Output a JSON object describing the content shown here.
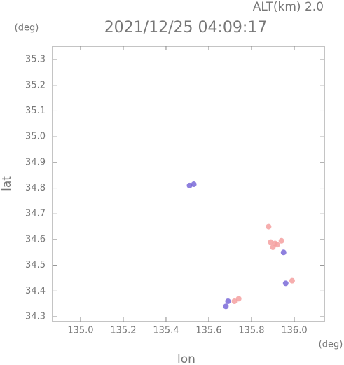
{
  "chart_data": {
    "type": "scatter",
    "title": "2021/12/25 04:09:17",
    "subtitle": "ALT(km) 2.0",
    "x_label": "lon",
    "y_label": "lat",
    "x_unit": "(deg)",
    "y_unit": "(deg)",
    "xlim": [
      134.869,
      136.141
    ],
    "ylim": [
      34.281,
      35.352
    ],
    "xticks": [
      {
        "value": 135.0,
        "label": "135.0"
      },
      135.2,
      135.4,
      135.6,
      135.8,
      {
        "value": 136.0,
        "label": "136.0"
      }
    ],
    "yticks": [
      34.3,
      34.4,
      34.5,
      34.6,
      34.7,
      34.8,
      34.9,
      {
        "value": 35.0,
        "label": "35.0"
      },
      35.1,
      35.2,
      35.3
    ],
    "series": [
      {
        "color": "#f4a0a0",
        "x": [
          135.91,
          135.89,
          135.92,
          135.94,
          135.9,
          135.88,
          135.99,
          135.74,
          135.72
        ],
        "y": [
          34.585,
          34.59,
          34.58,
          34.595,
          34.57,
          34.65,
          34.44,
          34.37,
          34.36
        ]
      },
      {
        "color": "#7a6ad8",
        "x": [
          135.51,
          135.53,
          135.68,
          135.69,
          135.95,
          135.96
        ],
        "y": [
          34.81,
          34.815,
          34.34,
          34.36,
          34.55,
          34.43
        ]
      }
    ]
  }
}
